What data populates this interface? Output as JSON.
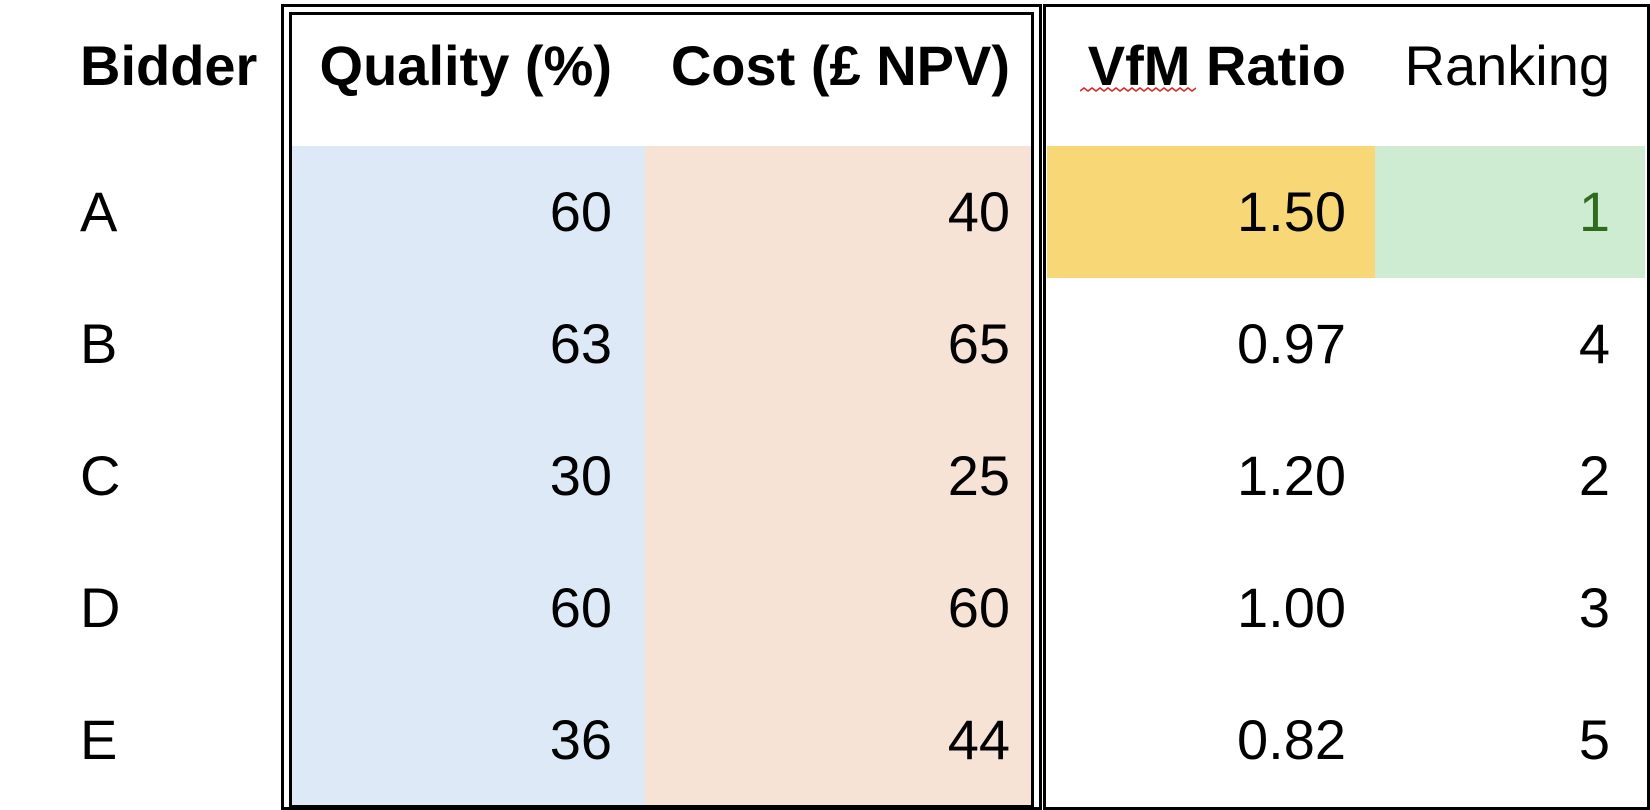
{
  "headers": {
    "bidder": "Bidder",
    "quality": "Quality (%)",
    "cost": "Cost (£ NPV)",
    "vfm": "VfM Ratio",
    "ranking": "Ranking"
  },
  "rows": [
    {
      "bidder": "A",
      "quality": "60",
      "cost": "40",
      "vfm": "1.50",
      "ranking": "1"
    },
    {
      "bidder": "B",
      "quality": "63",
      "cost": "65",
      "vfm": "0.97",
      "ranking": "4"
    },
    {
      "bidder": "C",
      "quality": "30",
      "cost": "25",
      "vfm": "1.20",
      "ranking": "2"
    },
    {
      "bidder": "D",
      "quality": "60",
      "cost": "60",
      "vfm": "1.00",
      "ranking": "3"
    },
    {
      "bidder": "E",
      "quality": "36",
      "cost": "44",
      "vfm": "0.82",
      "ranking": "5"
    }
  ],
  "colors": {
    "quality_fill": "#dde9f6",
    "cost_fill": "#f7e2d6",
    "best_vfm_fill": "#f8d776",
    "best_rank_fill": "#cdecd2",
    "best_rank_text": "#2e6b1f",
    "spellcheck_underline": "#d62828"
  }
}
